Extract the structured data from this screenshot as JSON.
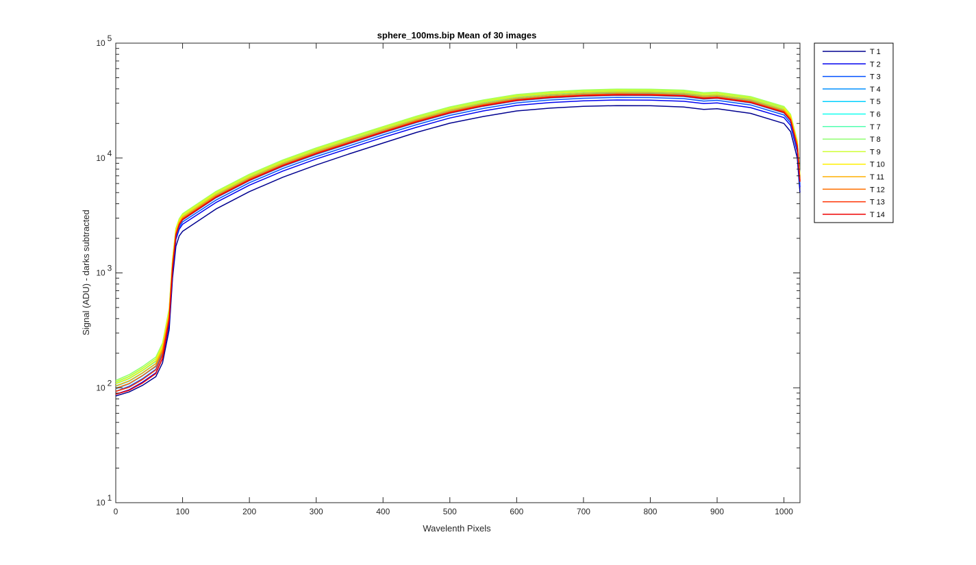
{
  "chart_data": {
    "type": "line",
    "title": "sphere_100ms.bip  Mean of 30 images",
    "xlabel": "Wavelenth Pixels",
    "ylabel": "Signal (ADU) - darks subtracted",
    "xlim": [
      0,
      1024
    ],
    "ylim": [
      10,
      100000
    ],
    "yscale": "log",
    "grid": false,
    "legend_position": "outside-top-right",
    "x_ticks": [
      "0",
      "100",
      "200",
      "300",
      "400",
      "500",
      "600",
      "700",
      "800",
      "900",
      "1000"
    ],
    "y_ticks": [
      {
        "base": "10",
        "exp": "1"
      },
      {
        "base": "10",
        "exp": "2"
      },
      {
        "base": "10",
        "exp": "3"
      },
      {
        "base": "10",
        "exp": "4"
      },
      {
        "base": "10",
        "exp": "5"
      }
    ],
    "x": [
      0,
      20,
      40,
      60,
      70,
      80,
      85,
      90,
      95,
      100,
      150,
      200,
      250,
      300,
      350,
      400,
      450,
      500,
      550,
      600,
      650,
      700,
      750,
      800,
      850,
      880,
      900,
      950,
      1000,
      1010,
      1020,
      1024
    ],
    "series": [
      {
        "name": "T 1",
        "color": "#00008f",
        "values": [
          85,
          92,
          105,
          125,
          165,
          320,
          900,
          1700,
          2100,
          2300,
          3600,
          5100,
          6800,
          8700,
          10900,
          13500,
          16700,
          20100,
          23000,
          25700,
          27200,
          28200,
          28600,
          28500,
          27800,
          26500,
          26900,
          24500,
          20000,
          17000,
          10000,
          5000
        ]
      },
      {
        "name": "T 2",
        "color": "#0000ef",
        "values": [
          88,
          96,
          112,
          135,
          180,
          360,
          1000,
          1950,
          2400,
          2650,
          4100,
          5800,
          7700,
          9800,
          12200,
          15100,
          18500,
          22300,
          25700,
          28700,
          30400,
          31500,
          32000,
          31900,
          31200,
          29800,
          30200,
          27500,
          22500,
          19200,
          11300,
          5600
        ]
      },
      {
        "name": "T 3",
        "color": "#0050ff",
        "values": [
          93,
          103,
          120,
          145,
          195,
          390,
          1080,
          2050,
          2500,
          2780,
          4300,
          6100,
          8100,
          10300,
          12800,
          15900,
          19500,
          23500,
          27000,
          30200,
          32000,
          33100,
          33700,
          33600,
          32900,
          31300,
          31800,
          29000,
          23700,
          20200,
          11900,
          5900
        ]
      },
      {
        "name": "T 4",
        "color": "#0090ff",
        "values": [
          98,
          108,
          127,
          153,
          205,
          410,
          1130,
          2130,
          2600,
          2890,
          4500,
          6350,
          8450,
          10750,
          13350,
          16550,
          20350,
          24500,
          28200,
          31500,
          33300,
          34500,
          35100,
          35000,
          34300,
          32600,
          33100,
          30200,
          24700,
          21100,
          12400,
          6200
        ]
      },
      {
        "name": "T 5",
        "color": "#00d0ff",
        "values": [
          103,
          114,
          134,
          162,
          215,
          430,
          1180,
          2210,
          2700,
          3000,
          4680,
          6600,
          8800,
          11200,
          13900,
          17200,
          21200,
          25500,
          29300,
          32700,
          34600,
          35900,
          36500,
          36400,
          35700,
          33900,
          34400,
          31400,
          25700,
          21900,
          12900,
          6400
        ]
      },
      {
        "name": "T 6",
        "color": "#10ffef",
        "values": [
          108,
          120,
          141,
          170,
          225,
          450,
          1230,
          2300,
          2810,
          3120,
          4870,
          6870,
          9150,
          11650,
          14450,
          17900,
          22050,
          26500,
          30500,
          34000,
          36000,
          37300,
          37900,
          37800,
          37100,
          35200,
          35700,
          32600,
          26700,
          22800,
          13400,
          6700
        ]
      },
      {
        "name": "T 7",
        "color": "#50ffaf",
        "values": [
          112,
          125,
          147,
          178,
          235,
          470,
          1280,
          2380,
          2900,
          3220,
          5020,
          7080,
          9430,
          12000,
          14900,
          18450,
          22700,
          27300,
          31400,
          35000,
          37100,
          38400,
          39000,
          38900,
          38200,
          36300,
          36800,
          33600,
          27500,
          23500,
          13800,
          6900
        ]
      },
      {
        "name": "T 8",
        "color": "#8fff70",
        "values": [
          116,
          130,
          153,
          185,
          245,
          490,
          1320,
          2440,
          2960,
          3280,
          5120,
          7230,
          9620,
          12250,
          15200,
          18800,
          23150,
          27850,
          32000,
          35700,
          37800,
          39100,
          39800,
          39700,
          39000,
          37000,
          37500,
          34300,
          28100,
          24000,
          14100,
          7000
        ]
      },
      {
        "name": "T 9",
        "color": "#cfff30",
        "values": [
          113,
          126,
          148,
          179,
          238,
          475,
          1290,
          2400,
          2920,
          3240,
          5060,
          7140,
          9500,
          12100,
          15000,
          18600,
          22900,
          27500,
          31650,
          35300,
          37400,
          38700,
          39300,
          39200,
          38500,
          36600,
          37100,
          33900,
          27800,
          23700,
          13900,
          6950
        ]
      },
      {
        "name": "T 10",
        "color": "#ffef00",
        "values": [
          109,
          121,
          142,
          172,
          228,
          455,
          1250,
          2330,
          2840,
          3150,
          4920,
          6940,
          9240,
          11760,
          14600,
          18080,
          22250,
          26750,
          30800,
          34350,
          36400,
          37700,
          38300,
          38200,
          37500,
          35600,
          36100,
          33000,
          27000,
          23000,
          13500,
          6750
        ]
      },
      {
        "name": "T 11",
        "color": "#ffaf00",
        "values": [
          104,
          115,
          135,
          163,
          218,
          435,
          1200,
          2250,
          2760,
          3060,
          4780,
          6740,
          8980,
          11430,
          14180,
          17560,
          21620,
          26000,
          29900,
          33350,
          35350,
          36600,
          37200,
          37100,
          36400,
          34600,
          35100,
          32000,
          26200,
          22400,
          13100,
          6550
        ]
      },
      {
        "name": "T 12",
        "color": "#ff7000",
        "values": [
          99,
          109,
          128,
          155,
          207,
          415,
          1150,
          2180,
          2680,
          2980,
          4650,
          6560,
          8740,
          11130,
          13800,
          17100,
          21050,
          25300,
          29100,
          32450,
          34400,
          35600,
          36200,
          36100,
          35400,
          33700,
          34100,
          31100,
          25500,
          21800,
          12800,
          6400
        ]
      },
      {
        "name": "T 13",
        "color": "#ff3000",
        "values": [
          93,
          101,
          118,
          143,
          192,
          400,
          1120,
          2150,
          2650,
          2940,
          4590,
          6480,
          8630,
          10990,
          13630,
          16880,
          20780,
          24980,
          28730,
          32050,
          33950,
          35150,
          35750,
          35650,
          34950,
          33300,
          33700,
          30700,
          25200,
          21500,
          12600,
          6300
        ]
      },
      {
        "name": "T 14",
        "color": "#ef0000",
        "values": [
          88,
          95,
          110,
          133,
          180,
          390,
          1100,
          2120,
          2620,
          2910,
          4540,
          6400,
          8530,
          10860,
          13470,
          16690,
          20540,
          24690,
          28400,
          31680,
          33560,
          34740,
          35340,
          35240,
          34550,
          32900,
          33300,
          30400,
          24900,
          21300,
          12500,
          6200
        ]
      }
    ]
  }
}
